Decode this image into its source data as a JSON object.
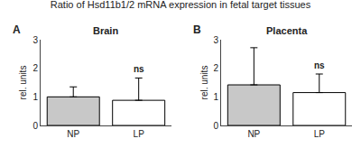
{
  "title": "Ratio of Hsd11b1/2 mRNA expression in fetal target tissues",
  "chart_data": [
    {
      "type": "bar",
      "title": "Brain",
      "categories": [
        "NP",
        "LP"
      ],
      "values": [
        1.0,
        0.88
      ],
      "error_upper": [
        0.35,
        0.78
      ],
      "colors": [
        "#c8c8c8",
        "#ffffff"
      ],
      "ylabel": "rel. units",
      "ylim": [
        0,
        3
      ],
      "yticks": [
        0,
        1,
        2,
        3
      ],
      "grid": false,
      "annotations": [
        {
          "text": "A"
        },
        {
          "text": "ns",
          "x": "LP"
        }
      ]
    },
    {
      "type": "bar",
      "title": "Placenta",
      "categories": [
        "NP",
        "LP"
      ],
      "values": [
        1.42,
        1.15
      ],
      "error_upper": [
        1.3,
        0.65
      ],
      "colors": [
        "#c8c8c8",
        "#ffffff"
      ],
      "ylabel": "rel. units",
      "ylim": [
        0,
        3
      ],
      "yticks": [
        0,
        1,
        2,
        3
      ],
      "grid": false,
      "annotations": [
        {
          "text": "B"
        },
        {
          "text": "ns",
          "x": "LP"
        }
      ]
    }
  ]
}
